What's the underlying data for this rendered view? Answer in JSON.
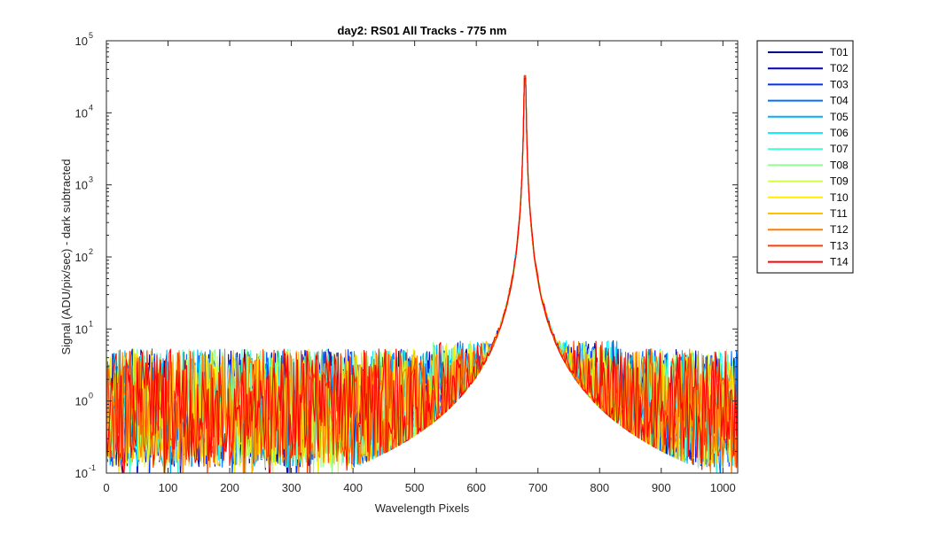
{
  "chart_data": {
    "type": "line",
    "title": "day2: RS01  All Tracks - 775 nm",
    "xlabel": "Wavelength Pixels",
    "ylabel": "Signal (ADU/pix/sec) - dark subtracted",
    "xlim": [
      0,
      1024
    ],
    "ylim": [
      0.1,
      100000
    ],
    "yscale": "log",
    "x_ticks": [
      0,
      100,
      200,
      300,
      400,
      500,
      600,
      700,
      800,
      900,
      1000
    ],
    "y_ticks": [
      {
        "base": "10",
        "exp": "-1",
        "value": 0.1
      },
      {
        "base": "10",
        "exp": "0",
        "value": 1
      },
      {
        "base": "10",
        "exp": "1",
        "value": 10
      },
      {
        "base": "10",
        "exp": "2",
        "value": 100
      },
      {
        "base": "10",
        "exp": "3",
        "value": 1000
      },
      {
        "base": "10",
        "exp": "4",
        "value": 10000
      },
      {
        "base": "10",
        "exp": "5",
        "value": 100000
      }
    ],
    "grid": false,
    "legend_position": "outside-top-right",
    "peak": {
      "x": 679,
      "y": 33000
    },
    "noise_floor": {
      "y_min": 0.1,
      "y_max": 5.5
    },
    "series": [
      {
        "name": "T01",
        "color": "#00008f"
      },
      {
        "name": "T02",
        "color": "#0000c8"
      },
      {
        "name": "T03",
        "color": "#0030ff"
      },
      {
        "name": "T04",
        "color": "#0070ff"
      },
      {
        "name": "T05",
        "color": "#00b0ff"
      },
      {
        "name": "T06",
        "color": "#10eeff"
      },
      {
        "name": "T07",
        "color": "#40ffd0"
      },
      {
        "name": "T08",
        "color": "#90ff90"
      },
      {
        "name": "T09",
        "color": "#d0ff40"
      },
      {
        "name": "T10",
        "color": "#ffee00"
      },
      {
        "name": "T11",
        "color": "#ffc000"
      },
      {
        "name": "T12",
        "color": "#ff8000"
      },
      {
        "name": "T13",
        "color": "#ff4000"
      },
      {
        "name": "T14",
        "color": "#ff0000"
      }
    ]
  }
}
